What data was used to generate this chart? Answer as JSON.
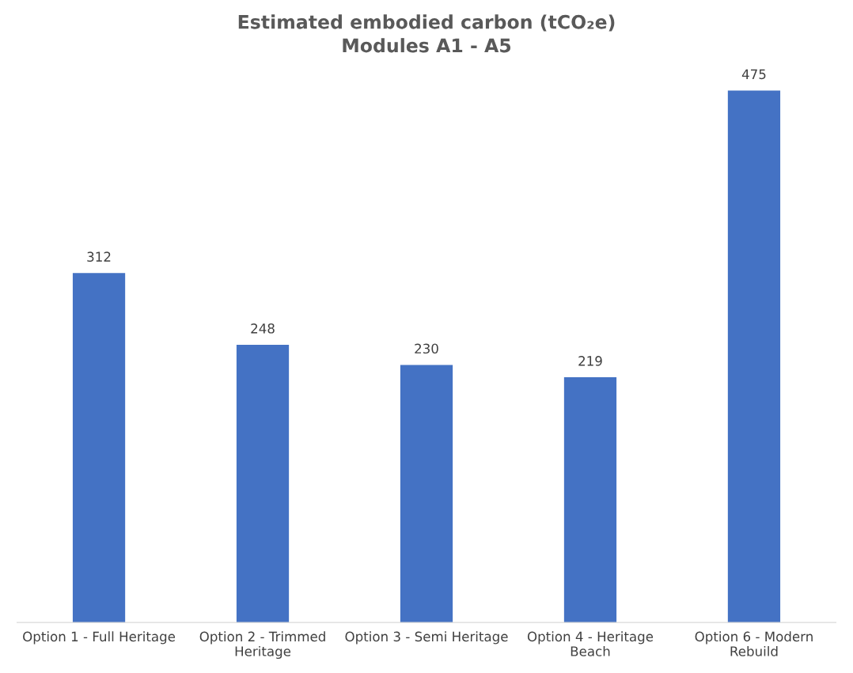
{
  "chart_data": {
    "type": "bar",
    "title": "Estimated embodied carbon (tCO₂e)",
    "subtitle": "Modules A1 - A5",
    "categories": [
      "Option 1 - Full Heritage",
      "Option 2 - Trimmed Heritage",
      "Option 3 - Semi Heritage",
      "Option 4 - Heritage Beach",
      "Option 6 - Modern Rebuild"
    ],
    "values": [
      312,
      248,
      230,
      219,
      475
    ],
    "color": "#4472c4",
    "data_labels": true,
    "grid": false,
    "legend": false,
    "tick_labels": "x"
  }
}
